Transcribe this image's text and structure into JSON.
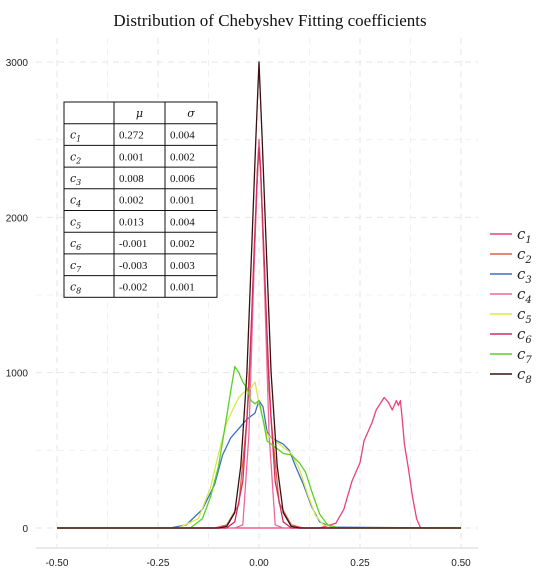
{
  "chart_data": {
    "type": "line",
    "title": "Distribution of Chebyshev Fitting coefficients",
    "xlabel": "",
    "ylabel": "",
    "xlim": [
      -0.5,
      0.5
    ],
    "ylim": [
      0,
      3000
    ],
    "x_ticks": [
      -0.5,
      -0.25,
      0.0,
      0.25,
      0.5
    ],
    "x_tick_labels": [
      "-0.50",
      "-0.25",
      "0.00",
      "0.25",
      "0.50"
    ],
    "y_ticks": [
      0,
      1000,
      2000,
      3000
    ],
    "y_tick_labels": [
      "0",
      "1000",
      "2000",
      "3000"
    ],
    "grid": true,
    "legend_position": "right",
    "series": [
      {
        "name": "c",
        "sub": "1",
        "color": "#e8427a",
        "points": [
          [
            -0.5,
            0
          ],
          [
            0.15,
            0
          ],
          [
            0.19,
            30
          ],
          [
            0.21,
            120
          ],
          [
            0.23,
            300
          ],
          [
            0.25,
            420
          ],
          [
            0.26,
            560
          ],
          [
            0.28,
            680
          ],
          [
            0.29,
            760
          ],
          [
            0.3,
            800
          ],
          [
            0.31,
            840
          ],
          [
            0.32,
            810
          ],
          [
            0.33,
            760
          ],
          [
            0.34,
            820
          ],
          [
            0.345,
            790
          ],
          [
            0.35,
            820
          ],
          [
            0.355,
            690
          ],
          [
            0.36,
            540
          ],
          [
            0.37,
            380
          ],
          [
            0.38,
            200
          ],
          [
            0.39,
            60
          ],
          [
            0.4,
            0
          ],
          [
            0.5,
            0
          ]
        ]
      },
      {
        "name": "c",
        "sub": "2",
        "color": "#e0604a",
        "points": [
          [
            -0.5,
            0
          ],
          [
            -0.11,
            0
          ],
          [
            -0.08,
            20
          ],
          [
            -0.05,
            150
          ],
          [
            -0.03,
            700
          ],
          [
            -0.015,
            1500
          ],
          [
            -0.005,
            2200
          ],
          [
            0.0,
            2500
          ],
          [
            0.005,
            2250
          ],
          [
            0.015,
            1500
          ],
          [
            0.03,
            700
          ],
          [
            0.05,
            160
          ],
          [
            0.08,
            20
          ],
          [
            0.11,
            0
          ],
          [
            0.5,
            0
          ]
        ]
      },
      {
        "name": "c",
        "sub": "3",
        "color": "#3c6ec8",
        "points": [
          [
            -0.5,
            0
          ],
          [
            -0.22,
            0
          ],
          [
            -0.18,
            20
          ],
          [
            -0.14,
            120
          ],
          [
            -0.11,
            280
          ],
          [
            -0.09,
            470
          ],
          [
            -0.07,
            580
          ],
          [
            -0.05,
            640
          ],
          [
            -0.03,
            700
          ],
          [
            -0.01,
            740
          ],
          [
            0.0,
            820
          ],
          [
            0.01,
            780
          ],
          [
            0.02,
            620
          ],
          [
            0.03,
            580
          ],
          [
            0.045,
            560
          ],
          [
            0.06,
            540
          ],
          [
            0.075,
            500
          ],
          [
            0.09,
            400
          ],
          [
            0.11,
            280
          ],
          [
            0.13,
            140
          ],
          [
            0.15,
            40
          ],
          [
            0.18,
            5
          ],
          [
            0.5,
            0
          ]
        ]
      },
      {
        "name": "c",
        "sub": "4",
        "color": "#f0689a",
        "points": [
          [
            -0.5,
            0
          ],
          [
            -0.06,
            0
          ],
          [
            -0.04,
            20
          ],
          [
            -0.025,
            600
          ],
          [
            -0.012,
            1700
          ],
          [
            -0.004,
            2300
          ],
          [
            0.0,
            2500
          ],
          [
            0.004,
            2300
          ],
          [
            0.012,
            1700
          ],
          [
            0.025,
            600
          ],
          [
            0.04,
            20
          ],
          [
            0.06,
            0
          ],
          [
            0.5,
            0
          ]
        ]
      },
      {
        "name": "c",
        "sub": "5",
        "color": "#d8e84a",
        "points": [
          [
            -0.5,
            0
          ],
          [
            -0.2,
            0
          ],
          [
            -0.15,
            60
          ],
          [
            -0.12,
            260
          ],
          [
            -0.1,
            480
          ],
          [
            -0.08,
            680
          ],
          [
            -0.065,
            760
          ],
          [
            -0.05,
            840
          ],
          [
            -0.035,
            880
          ],
          [
            -0.02,
            900
          ],
          [
            -0.01,
            940
          ],
          [
            0.0,
            800
          ],
          [
            0.01,
            700
          ],
          [
            0.02,
            600
          ],
          [
            0.04,
            560
          ],
          [
            0.06,
            520
          ],
          [
            0.08,
            480
          ],
          [
            0.1,
            380
          ],
          [
            0.12,
            220
          ],
          [
            0.14,
            80
          ],
          [
            0.16,
            20
          ],
          [
            0.2,
            0
          ],
          [
            0.5,
            0
          ]
        ]
      },
      {
        "name": "c",
        "sub": "6",
        "color": "#d02e60",
        "points": [
          [
            -0.5,
            0
          ],
          [
            -0.08,
            0
          ],
          [
            -0.06,
            40
          ],
          [
            -0.04,
            300
          ],
          [
            -0.025,
            900
          ],
          [
            -0.012,
            1800
          ],
          [
            -0.004,
            2300
          ],
          [
            0.0,
            2450
          ],
          [
            0.004,
            2300
          ],
          [
            0.012,
            1800
          ],
          [
            0.025,
            900
          ],
          [
            0.04,
            300
          ],
          [
            0.06,
            40
          ],
          [
            0.08,
            0
          ],
          [
            0.5,
            0
          ]
        ]
      },
      {
        "name": "c",
        "sub": "7",
        "color": "#58d028",
        "points": [
          [
            -0.5,
            0
          ],
          [
            -0.17,
            0
          ],
          [
            -0.14,
            60
          ],
          [
            -0.12,
            200
          ],
          [
            -0.1,
            400
          ],
          [
            -0.085,
            640
          ],
          [
            -0.07,
            880
          ],
          [
            -0.06,
            1040
          ],
          [
            -0.05,
            1000
          ],
          [
            -0.04,
            940
          ],
          [
            -0.03,
            900
          ],
          [
            -0.02,
            820
          ],
          [
            -0.01,
            800
          ],
          [
            0.0,
            820
          ],
          [
            0.01,
            700
          ],
          [
            0.02,
            560
          ],
          [
            0.04,
            520
          ],
          [
            0.06,
            480
          ],
          [
            0.08,
            470
          ],
          [
            0.1,
            420
          ],
          [
            0.115,
            360
          ],
          [
            0.13,
            240
          ],
          [
            0.15,
            90
          ],
          [
            0.17,
            20
          ],
          [
            0.2,
            0
          ],
          [
            0.5,
            0
          ]
        ]
      },
      {
        "name": "c",
        "sub": "8",
        "color": "#3a1010",
        "points": [
          [
            -0.5,
            0
          ],
          [
            -0.1,
            0
          ],
          [
            -0.08,
            10
          ],
          [
            -0.06,
            100
          ],
          [
            -0.045,
            400
          ],
          [
            -0.03,
            1000
          ],
          [
            -0.018,
            1800
          ],
          [
            -0.008,
            2500
          ],
          [
            0.0,
            3000
          ],
          [
            0.008,
            2500
          ],
          [
            0.018,
            1800
          ],
          [
            0.03,
            1000
          ],
          [
            0.045,
            400
          ],
          [
            0.06,
            100
          ],
          [
            0.08,
            10
          ],
          [
            0.1,
            0
          ],
          [
            0.5,
            0
          ]
        ]
      }
    ]
  },
  "stats_table": {
    "headers": [
      "",
      "μ",
      "σ"
    ],
    "rows": [
      {
        "name": "c",
        "sub": "1",
        "mu": "0.272",
        "sigma": "0.004"
      },
      {
        "name": "c",
        "sub": "2",
        "mu": "0.001",
        "sigma": "0.002"
      },
      {
        "name": "c",
        "sub": "3",
        "mu": "0.008",
        "sigma": "0.006"
      },
      {
        "name": "c",
        "sub": "4",
        "mu": "0.002",
        "sigma": "0.001"
      },
      {
        "name": "c",
        "sub": "5",
        "mu": "0.013",
        "sigma": "0.004"
      },
      {
        "name": "c",
        "sub": "6",
        "mu": "-0.001",
        "sigma": "0.002"
      },
      {
        "name": "c",
        "sub": "7",
        "mu": "-0.003",
        "sigma": "0.003"
      },
      {
        "name": "c",
        "sub": "8",
        "mu": "-0.002",
        "sigma": "0.001"
      }
    ]
  }
}
